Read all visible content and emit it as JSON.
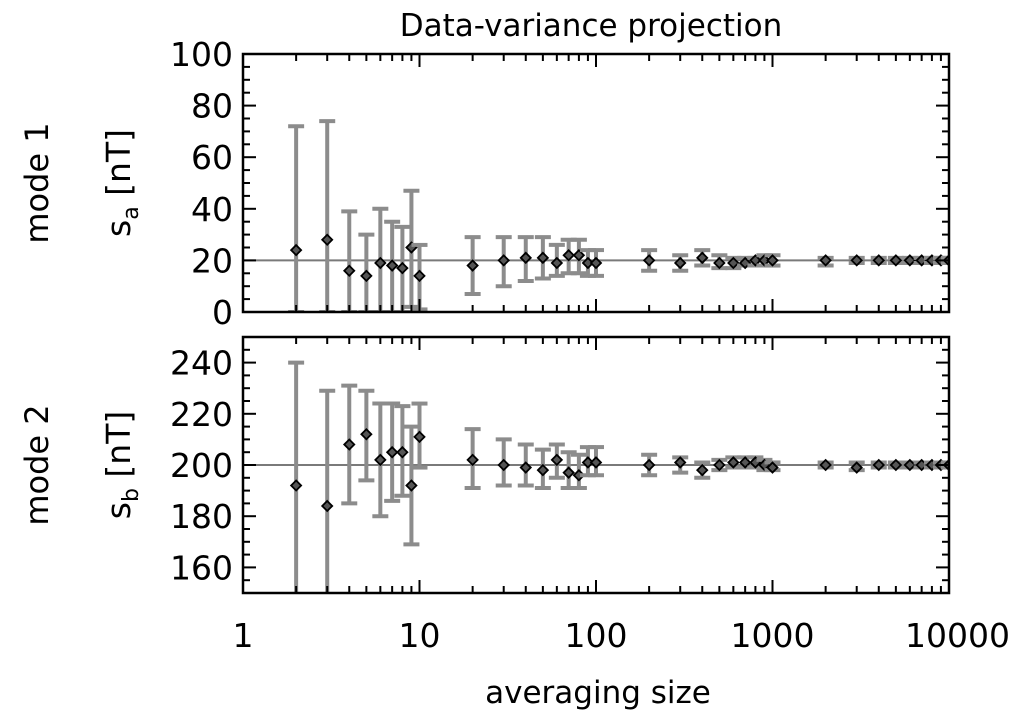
{
  "chart_data": {
    "type": "scatter",
    "title": "Data-variance projection",
    "xlabel": "averaging size",
    "x_scale": "log",
    "xlim": [
      1,
      10000
    ],
    "x_ticks": [
      "1",
      "10",
      "100",
      "1000",
      "10000"
    ],
    "x_tick_values": [
      1,
      10,
      100,
      1000,
      10000
    ],
    "marker": "diamond",
    "errorbar_color": "#8c8c8c",
    "reference_line_color": "#7a7a7a",
    "panels": [
      {
        "row_label": "mode 1",
        "ylabel_symbol": "s",
        "ylabel_subscript": "a",
        "ylabel_unit": "[nT]",
        "ylim": [
          0,
          100
        ],
        "y_ticks": [
          "0",
          "20",
          "40",
          "60",
          "80",
          "100"
        ],
        "y_tick_values": [
          0,
          20,
          40,
          60,
          80,
          100
        ],
        "reference_y": 20,
        "points": [
          {
            "x": 2,
            "y": 24,
            "lo": 0,
            "hi": 72
          },
          {
            "x": 3,
            "y": 28,
            "lo": 0,
            "hi": 74
          },
          {
            "x": 4,
            "y": 16,
            "lo": 0,
            "hi": 39
          },
          {
            "x": 5,
            "y": 14,
            "lo": 0,
            "hi": 30
          },
          {
            "x": 6,
            "y": 19,
            "lo": 0,
            "hi": 40
          },
          {
            "x": 7,
            "y": 18,
            "lo": 0,
            "hi": 35
          },
          {
            "x": 8,
            "y": 17,
            "lo": 0,
            "hi": 33
          },
          {
            "x": 9,
            "y": 25,
            "lo": 2,
            "hi": 47
          },
          {
            "x": 10,
            "y": 14,
            "lo": 1,
            "hi": 26
          },
          {
            "x": 20,
            "y": 18,
            "lo": 7,
            "hi": 29
          },
          {
            "x": 30,
            "y": 20,
            "lo": 10,
            "hi": 29
          },
          {
            "x": 40,
            "y": 21,
            "lo": 12,
            "hi": 29
          },
          {
            "x": 50,
            "y": 21,
            "lo": 13,
            "hi": 29
          },
          {
            "x": 60,
            "y": 19,
            "lo": 14,
            "hi": 26
          },
          {
            "x": 70,
            "y": 22,
            "lo": 15,
            "hi": 28
          },
          {
            "x": 80,
            "y": 22,
            "lo": 15,
            "hi": 28
          },
          {
            "x": 90,
            "y": 19,
            "lo": 14,
            "hi": 24
          },
          {
            "x": 100,
            "y": 19,
            "lo": 14,
            "hi": 24
          },
          {
            "x": 200,
            "y": 20,
            "lo": 16,
            "hi": 24
          },
          {
            "x": 300,
            "y": 19,
            "lo": 16,
            "hi": 22
          },
          {
            "x": 400,
            "y": 21,
            "lo": 18,
            "hi": 24
          },
          {
            "x": 500,
            "y": 19,
            "lo": 17,
            "hi": 22
          },
          {
            "x": 600,
            "y": 19,
            "lo": 17,
            "hi": 21
          },
          {
            "x": 700,
            "y": 19,
            "lo": 18,
            "hi": 21
          },
          {
            "x": 800,
            "y": 20,
            "lo": 18,
            "hi": 21
          },
          {
            "x": 900,
            "y": 20,
            "lo": 18,
            "hi": 22
          },
          {
            "x": 1000,
            "y": 20,
            "lo": 18,
            "hi": 22
          },
          {
            "x": 2000,
            "y": 20,
            "lo": 18,
            "hi": 21
          },
          {
            "x": 3000,
            "y": 20,
            "lo": 19,
            "hi": 21
          },
          {
            "x": 4000,
            "y": 20,
            "lo": 19,
            "hi": 21
          },
          {
            "x": 5000,
            "y": 20,
            "lo": 19,
            "hi": 21
          },
          {
            "x": 6000,
            "y": 20,
            "lo": 19,
            "hi": 21
          },
          {
            "x": 7000,
            "y": 20,
            "lo": 19,
            "hi": 21
          },
          {
            "x": 8000,
            "y": 20,
            "lo": 19,
            "hi": 21
          },
          {
            "x": 9000,
            "y": 20,
            "lo": 19,
            "hi": 21
          },
          {
            "x": 10000,
            "y": 20,
            "lo": 19,
            "hi": 21
          }
        ]
      },
      {
        "row_label": "mode 2",
        "ylabel_symbol": "s",
        "ylabel_subscript": "b",
        "ylabel_unit": "[nT]",
        "ylim": [
          150,
          250
        ],
        "y_ticks": [
          "160",
          "180",
          "200",
          "220",
          "240"
        ],
        "y_tick_values": [
          160,
          180,
          200,
          220,
          240
        ],
        "reference_y": 200,
        "points": [
          {
            "x": 2,
            "y": 192,
            "lo": 145,
            "hi": 240
          },
          {
            "x": 3,
            "y": 184,
            "lo": 138,
            "hi": 229
          },
          {
            "x": 4,
            "y": 208,
            "lo": 185,
            "hi": 231
          },
          {
            "x": 5,
            "y": 212,
            "lo": 194,
            "hi": 229
          },
          {
            "x": 6,
            "y": 202,
            "lo": 180,
            "hi": 224
          },
          {
            "x": 7,
            "y": 205,
            "lo": 186,
            "hi": 224
          },
          {
            "x": 8,
            "y": 205,
            "lo": 188,
            "hi": 223
          },
          {
            "x": 9,
            "y": 192,
            "lo": 169,
            "hi": 215
          },
          {
            "x": 10,
            "y": 211,
            "lo": 199,
            "hi": 224
          },
          {
            "x": 20,
            "y": 202,
            "lo": 191,
            "hi": 214
          },
          {
            "x": 30,
            "y": 200,
            "lo": 192,
            "hi": 210
          },
          {
            "x": 40,
            "y": 199,
            "lo": 192,
            "hi": 208
          },
          {
            "x": 50,
            "y": 198,
            "lo": 191,
            "hi": 206
          },
          {
            "x": 60,
            "y": 202,
            "lo": 195,
            "hi": 208
          },
          {
            "x": 70,
            "y": 197,
            "lo": 191,
            "hi": 205
          },
          {
            "x": 80,
            "y": 196,
            "lo": 191,
            "hi": 204
          },
          {
            "x": 90,
            "y": 201,
            "lo": 196,
            "hi": 207
          },
          {
            "x": 100,
            "y": 201,
            "lo": 196,
            "hi": 207
          },
          {
            "x": 200,
            "y": 200,
            "lo": 196,
            "hi": 204
          },
          {
            "x": 300,
            "y": 201,
            "lo": 197,
            "hi": 203
          },
          {
            "x": 400,
            "y": 198,
            "lo": 195,
            "hi": 201
          },
          {
            "x": 500,
            "y": 200,
            "lo": 198,
            "hi": 202
          },
          {
            "x": 600,
            "y": 201,
            "lo": 199,
            "hi": 203
          },
          {
            "x": 700,
            "y": 201,
            "lo": 199,
            "hi": 203
          },
          {
            "x": 800,
            "y": 201,
            "lo": 199,
            "hi": 203
          },
          {
            "x": 900,
            "y": 200,
            "lo": 198,
            "hi": 202
          },
          {
            "x": 1000,
            "y": 199,
            "lo": 198,
            "hi": 201
          },
          {
            "x": 2000,
            "y": 200,
            "lo": 199,
            "hi": 201
          },
          {
            "x": 3000,
            "y": 199,
            "lo": 198,
            "hi": 201
          },
          {
            "x": 4000,
            "y": 200,
            "lo": 199,
            "hi": 201
          },
          {
            "x": 5000,
            "y": 200,
            "lo": 199,
            "hi": 201
          },
          {
            "x": 6000,
            "y": 200,
            "lo": 199,
            "hi": 201
          },
          {
            "x": 7000,
            "y": 200,
            "lo": 199,
            "hi": 201
          },
          {
            "x": 8000,
            "y": 200,
            "lo": 199,
            "hi": 201
          },
          {
            "x": 9000,
            "y": 200,
            "lo": 199,
            "hi": 201
          },
          {
            "x": 10000,
            "y": 200,
            "lo": 199,
            "hi": 201
          }
        ]
      }
    ]
  }
}
